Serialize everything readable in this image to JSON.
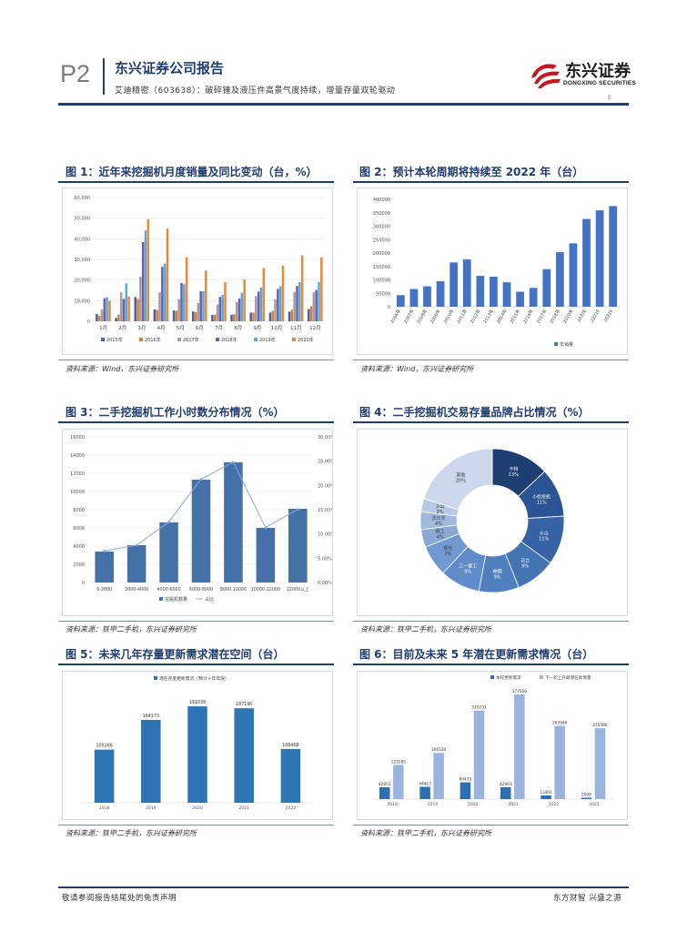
{
  "header": {
    "page_label": "P2",
    "company_report": "东兴证券公司报告",
    "subtitle": "艾迪精密（603638）：破碎锤及液压件高景气度持续，增量存量双轮驱动",
    "logo_cn": "东兴证券",
    "logo_en": "DONGXING SECURITIES",
    "mark": "E"
  },
  "figures": [
    {
      "title": "图 1：近年来挖掘机月度销量及同比变动（台，%）",
      "source": "资料来源：Wind，东兴证券研究所"
    },
    {
      "title": "图 2：预计本轮周期将持续至 2022 年（台）",
      "source": "资料来源：Wind，东兴证券研究所"
    },
    {
      "title": "图 3：二手挖掘机工作小时数分布情况（%）",
      "source": "资料来源：铁甲二手机，东兴证券研究所"
    },
    {
      "title": "图 4：二手挖掘机交易存量品牌占比情况（%）",
      "source": "资料来源：铁甲二手机，东兴证券研究所"
    },
    {
      "title": "图 5：未来几年存量更新需求潜在空间（台）",
      "source": "资料来源：铁甲二手机，东兴证券研究所"
    },
    {
      "title": "图 6：目前及未来 5 年潜在更新需求情况（台）",
      "source": "资料来源：铁甲二手机，东兴证券研究所"
    }
  ],
  "chart_data": [
    {
      "type": "bar",
      "categories": [
        "1月",
        "2月",
        "3月",
        "4月",
        "5月",
        "6月",
        "7月",
        "8月",
        "9月",
        "10月",
        "11月",
        "12月"
      ],
      "ylim": [
        0,
        60000
      ],
      "yticks": [
        "0",
        "10,000",
        "20,000",
        "30,000",
        "40,000",
        "50,000",
        "60,000"
      ],
      "series": [
        {
          "name": "2015年",
          "color": "#3f66a8",
          "values": [
            3500,
            1600,
            11800,
            5800,
            5200,
            4800,
            3100,
            3200,
            4200,
            4200,
            4700,
            5900
          ]
        },
        {
          "name": "2016年",
          "color": "#e07a2e",
          "values": [
            2700,
            3200,
            10900,
            5500,
            5100,
            4400,
            3200,
            3400,
            4200,
            5000,
            5600,
            7300
          ]
        },
        {
          "name": "2017年",
          "color": "#9e9e9e",
          "values": [
            5700,
            14000,
            21600,
            14000,
            10800,
            8900,
            8100,
            9300,
            12200,
            10700,
            14300,
            14100
          ]
        },
        {
          "name": "2018年",
          "color": "#6a5fa8",
          "values": [
            11200,
            10900,
            38400,
            26400,
            18600,
            14600,
            11800,
            11100,
            14400,
            15700,
            17100,
            15200
          ]
        },
        {
          "name": "2019年",
          "color": "#5aa9d6",
          "values": [
            11700,
            18400,
            44000,
            28000,
            18000,
            14600,
            12800,
            13800,
            16400,
            17000,
            19000,
            19000
          ]
        },
        {
          "name": "2020年",
          "color": "#e9893a",
          "values": [
            10000,
            12000,
            49400,
            45000,
            31000,
            24600,
            19000,
            20300,
            25800,
            27000,
            32000,
            31000
          ]
        }
      ]
    },
    {
      "type": "bar",
      "categories": [
        "2006年",
        "2007年",
        "2008年",
        "2009年",
        "2010年",
        "2011年",
        "2012年",
        "2013年",
        "2014年",
        "2015年",
        "2016年",
        "2017年",
        "2018年",
        "2019年",
        "2020E",
        "2021E",
        "2022E"
      ],
      "ylim": [
        0,
        400000
      ],
      "yticks": [
        "0",
        "50000",
        "100000",
        "150000",
        "200000",
        "250000",
        "300000",
        "350000",
        "400000"
      ],
      "series": [
        {
          "name": "年销量",
          "color": "#4472c4",
          "values": [
            43000,
            66000,
            76000,
            95000,
            165000,
            176000,
            115000,
            112000,
            91000,
            56000,
            70000,
            140000,
            203000,
            236000,
            327000,
            359000,
            375000
          ]
        }
      ]
    },
    {
      "type": "bar",
      "categories": [
        "0-2000",
        "2000-4000",
        "4000-6000",
        "6000-8000",
        "8000-10000",
        "10000-12000",
        "12000以上"
      ],
      "ylim": [
        0,
        16000
      ],
      "yticks": [
        "0",
        "2000",
        "4000",
        "6000",
        "8000",
        "10000",
        "12000",
        "14000",
        "16000"
      ],
      "y2lim": [
        0,
        30
      ],
      "y2ticks": [
        "0.00%",
        "5.00%",
        "10.00%",
        "15.00%",
        "20.00%",
        "25.00%",
        "30.00%"
      ],
      "series": [
        {
          "name": "挖掘机数量",
          "color": "#4472a8",
          "values": [
            3400,
            4100,
            6600,
            11300,
            13200,
            6000,
            8100
          ]
        },
        {
          "name": "占比",
          "type": "line",
          "color": "#8ea9db",
          "values": [
            6.5,
            7.7,
            12.5,
            21.3,
            24.8,
            11.3,
            15.1
          ]
        }
      ]
    },
    {
      "type": "pie",
      "slices": [
        {
          "label": "卡特",
          "value": 13,
          "text": "13%",
          "color": "#1f3f73"
        },
        {
          "label": "小松挖机",
          "value": 11,
          "text": "11%",
          "color": "#2a5494"
        },
        {
          "label": "斗山",
          "value": 11,
          "text": "11%",
          "color": "#3563a6"
        },
        {
          "label": "日立",
          "value": 9,
          "text": "9%",
          "color": "#4474b4"
        },
        {
          "label": "神钢",
          "value": 9,
          "text": "9%",
          "color": "#4f7fbf"
        },
        {
          "label": "三一重工",
          "value": 9,
          "text": "9%",
          "color": "#5f8cc8"
        },
        {
          "label": "现代",
          "value": 7,
          "text": "7%",
          "color": "#7099d0"
        },
        {
          "label": "柳工",
          "value": 4,
          "text": "4%",
          "color": "#8aaad6"
        },
        {
          "label": "沃尔沃",
          "value": 4,
          "text": "4%",
          "color": "#a0badf"
        },
        {
          "label": "斗山",
          "value": 3,
          "text": "3%",
          "color": "#b6cae6"
        },
        {
          "label": "其他",
          "value": 20,
          "text": "20%",
          "color": "#cdd8ec"
        }
      ]
    },
    {
      "type": "bar",
      "legend": "潜在存量更新需求（预计十年年限）",
      "categories": [
        "2018",
        "2019",
        "2020",
        "2021",
        "2022"
      ],
      "ylim": [
        0,
        220000
      ],
      "series": [
        {
          "name": "潜在存量更新需求（预计十年年限）",
          "color": "#2e75b6",
          "values": [
            105266,
            164173,
            191038,
            187195,
            106468
          ]
        }
      ],
      "labels": [
        "105266",
        "164173",
        "191038",
        "187195",
        "106468"
      ]
    },
    {
      "type": "bar",
      "categories": [
        "2018",
        "2019",
        "2020",
        "2021",
        "2022",
        "2023"
      ],
      "ylim": [
        0,
        400000
      ],
      "series": [
        {
          "name": "本轮更新需求",
          "color": "#2e6fb4",
          "values": [
            42851,
            44413,
            60435,
            42903,
            13401,
            5000
          ]
        },
        {
          "name": "下一轮上升期潜在新增量",
          "color": "#9ab4dc",
          "values": [
            123185,
            166530,
            319231,
            377560,
            263946,
            255506
          ]
        }
      ],
      "labels1": [
        "42851",
        "44413",
        "60435",
        "42903",
        "13401",
        "5000"
      ],
      "labels2": [
        "123185",
        "166530",
        "319231",
        "377560",
        "263946",
        "255506"
      ]
    }
  ],
  "footer": {
    "disclaimer": "敬请参阅报告结尾处的免责声明",
    "slogan": "东方财智 兴盛之源"
  }
}
